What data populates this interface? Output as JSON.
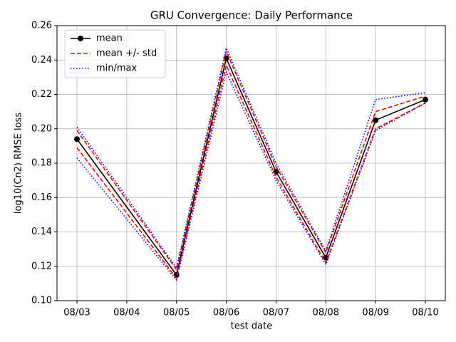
{
  "chart_data": {
    "type": "line",
    "title": "GRU Convergence: Daily Performance",
    "xlabel": "test date",
    "ylabel": "log10(Cn2) RMSE loss",
    "xticks": [
      "08/03",
      "08/04",
      "08/05",
      "08/06",
      "08/07",
      "08/08",
      "08/09",
      "08/10"
    ],
    "x": [
      "08/03",
      "08/05",
      "08/06",
      "08/07",
      "08/08",
      "08/09",
      "08/10"
    ],
    "series": [
      {
        "name": "mean",
        "color": "#000000",
        "style": "solid",
        "marker": true,
        "values": [
          0.194,
          0.115,
          0.241,
          0.175,
          0.125,
          0.205,
          0.217
        ]
      },
      {
        "name": "mean +/- std",
        "color": "#ff0000",
        "style": "dashed",
        "upper": [
          0.199,
          0.118,
          0.245,
          0.178,
          0.128,
          0.21,
          0.219
        ],
        "lower": [
          0.189,
          0.113,
          0.237,
          0.172,
          0.122,
          0.2,
          0.215
        ]
      },
      {
        "name": "min/max",
        "color": "#0000ff",
        "style": "dotted",
        "upper": [
          0.201,
          0.119,
          0.247,
          0.18,
          0.129,
          0.217,
          0.221
        ],
        "lower": [
          0.183,
          0.112,
          0.233,
          0.17,
          0.121,
          0.199,
          0.215
        ]
      }
    ],
    "ylim": [
      0.1,
      0.26
    ],
    "yticks": [
      {
        "value": 0.1,
        "label": "0.10"
      },
      0.12,
      0.14,
      0.16,
      0.18,
      {
        "value": 0.2,
        "label": "0.20"
      },
      0.22,
      0.24,
      0.26
    ],
    "grid": true,
    "legend": "upper left"
  }
}
